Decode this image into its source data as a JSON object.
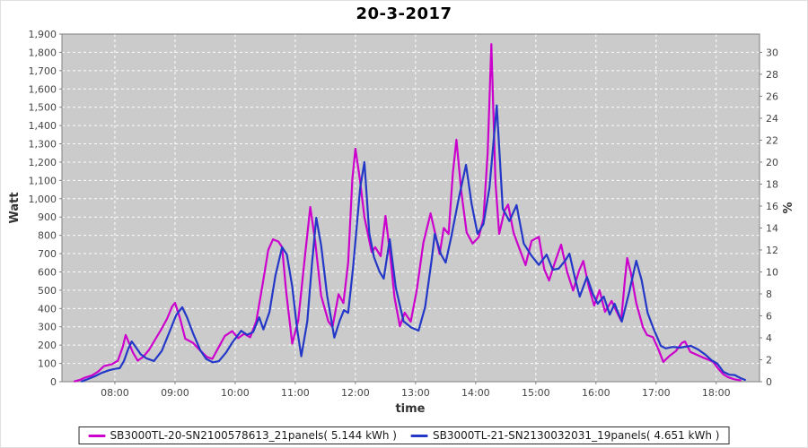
{
  "title": "20-3-2017",
  "chart_data": {
    "type": "line",
    "title": "20-3-2017",
    "xlabel": "time",
    "ylabel_left": "Watt",
    "ylabel_right": "%",
    "plot_bg": "#cbcbcb",
    "grid_color": "#ffffff",
    "grid_style": "dashed",
    "axis_color": "#808080",
    "legend_position": "bottom",
    "x_range_hours": [
      7.12,
      18.72
    ],
    "x_ticks": [
      {
        "h": 8,
        "label": "08:00"
      },
      {
        "h": 9,
        "label": "09:00"
      },
      {
        "h": 10,
        "label": "10:00"
      },
      {
        "h": 11,
        "label": "11:00"
      },
      {
        "h": 12,
        "label": "12:00"
      },
      {
        "h": 13,
        "label": "13:00"
      },
      {
        "h": 14,
        "label": "14:00"
      },
      {
        "h": 15,
        "label": "15:00"
      },
      {
        "h": 16,
        "label": "16:00"
      },
      {
        "h": 17,
        "label": "17:00"
      },
      {
        "h": 18,
        "label": "18:00"
      }
    ],
    "y_left_range": [
      0,
      1900
    ],
    "y_left_tick_step": 100,
    "y_right_ticks": [
      0,
      2,
      4,
      6,
      8,
      10,
      12,
      14,
      16,
      18,
      20,
      22,
      24,
      26,
      28,
      30
    ],
    "y_right_scale_watt_per_percent": 60,
    "series": [
      {
        "name": "SB3000TL-20-SN2100578613_21panels( 5.144 kWh )",
        "color": "#cc00cc",
        "points": [
          [
            7.33,
            2
          ],
          [
            7.42,
            10
          ],
          [
            7.5,
            22
          ],
          [
            7.62,
            35
          ],
          [
            7.72,
            55
          ],
          [
            7.82,
            85
          ],
          [
            7.95,
            95
          ],
          [
            8.05,
            115
          ],
          [
            8.13,
            190
          ],
          [
            8.18,
            255
          ],
          [
            8.23,
            215
          ],
          [
            8.3,
            160
          ],
          [
            8.38,
            115
          ],
          [
            8.47,
            135
          ],
          [
            8.57,
            175
          ],
          [
            8.67,
            230
          ],
          [
            8.77,
            285
          ],
          [
            8.87,
            345
          ],
          [
            8.95,
            410
          ],
          [
            9.0,
            431
          ],
          [
            9.08,
            350
          ],
          [
            9.17,
            235
          ],
          [
            9.3,
            212
          ],
          [
            9.42,
            170
          ],
          [
            9.53,
            135
          ],
          [
            9.62,
            125
          ],
          [
            9.72,
            185
          ],
          [
            9.83,
            250
          ],
          [
            9.95,
            276
          ],
          [
            10.05,
            238
          ],
          [
            10.15,
            262
          ],
          [
            10.25,
            243
          ],
          [
            10.35,
            330
          ],
          [
            10.45,
            520
          ],
          [
            10.55,
            720
          ],
          [
            10.63,
            778
          ],
          [
            10.72,
            766
          ],
          [
            10.78,
            735
          ],
          [
            10.85,
            490
          ],
          [
            10.95,
            208
          ],
          [
            11.05,
            335
          ],
          [
            11.15,
            650
          ],
          [
            11.25,
            955
          ],
          [
            11.33,
            770
          ],
          [
            11.43,
            470
          ],
          [
            11.55,
            330
          ],
          [
            11.62,
            298
          ],
          [
            11.72,
            478
          ],
          [
            11.8,
            430
          ],
          [
            11.88,
            650
          ],
          [
            11.95,
            1110
          ],
          [
            12.0,
            1273
          ],
          [
            12.07,
            1115
          ],
          [
            12.15,
            900
          ],
          [
            12.27,
            708
          ],
          [
            12.33,
            735
          ],
          [
            12.42,
            686
          ],
          [
            12.5,
            906
          ],
          [
            12.58,
            690
          ],
          [
            12.65,
            462
          ],
          [
            12.74,
            303
          ],
          [
            12.82,
            377
          ],
          [
            12.92,
            328
          ],
          [
            13.02,
            500
          ],
          [
            13.13,
            760
          ],
          [
            13.25,
            920
          ],
          [
            13.33,
            805
          ],
          [
            13.4,
            698
          ],
          [
            13.47,
            840
          ],
          [
            13.55,
            808
          ],
          [
            13.62,
            1140
          ],
          [
            13.68,
            1322
          ],
          [
            13.76,
            1040
          ],
          [
            13.85,
            815
          ],
          [
            13.95,
            755
          ],
          [
            14.05,
            790
          ],
          [
            14.13,
            890
          ],
          [
            14.2,
            1250
          ],
          [
            14.26,
            1845
          ],
          [
            14.33,
            1090
          ],
          [
            14.39,
            808
          ],
          [
            14.48,
            935
          ],
          [
            14.54,
            968
          ],
          [
            14.63,
            815
          ],
          [
            14.73,
            725
          ],
          [
            14.83,
            637
          ],
          [
            14.93,
            770
          ],
          [
            15.05,
            792
          ],
          [
            15.14,
            615
          ],
          [
            15.22,
            553
          ],
          [
            15.32,
            655
          ],
          [
            15.42,
            749
          ],
          [
            15.52,
            600
          ],
          [
            15.62,
            498
          ],
          [
            15.72,
            608
          ],
          [
            15.79,
            660
          ],
          [
            15.88,
            520
          ],
          [
            15.97,
            416
          ],
          [
            16.06,
            500
          ],
          [
            16.15,
            382
          ],
          [
            16.26,
            441
          ],
          [
            16.34,
            385
          ],
          [
            16.42,
            333
          ],
          [
            16.48,
            555
          ],
          [
            16.52,
            676
          ],
          [
            16.58,
            595
          ],
          [
            16.67,
            430
          ],
          [
            16.78,
            298
          ],
          [
            16.85,
            255
          ],
          [
            16.95,
            243
          ],
          [
            17.05,
            168
          ],
          [
            17.12,
            108
          ],
          [
            17.22,
            140
          ],
          [
            17.33,
            168
          ],
          [
            17.43,
            212
          ],
          [
            17.48,
            220
          ],
          [
            17.57,
            163
          ],
          [
            17.67,
            148
          ],
          [
            17.77,
            133
          ],
          [
            17.87,
            120
          ],
          [
            17.95,
            108
          ],
          [
            18.03,
            72
          ],
          [
            18.12,
            40
          ],
          [
            18.2,
            24
          ],
          [
            18.3,
            13
          ],
          [
            18.4,
            8
          ]
        ]
      },
      {
        "name": "SB3000TL-21-SN2130032031_19panels( 4.651 kWh )",
        "color": "#2438c8",
        "points": [
          [
            7.45,
            2
          ],
          [
            7.55,
            14
          ],
          [
            7.67,
            30
          ],
          [
            7.78,
            48
          ],
          [
            7.9,
            62
          ],
          [
            8.0,
            70
          ],
          [
            8.08,
            74
          ],
          [
            8.15,
            112
          ],
          [
            8.22,
            178
          ],
          [
            8.28,
            220
          ],
          [
            8.35,
            188
          ],
          [
            8.43,
            150
          ],
          [
            8.53,
            127
          ],
          [
            8.65,
            113
          ],
          [
            8.78,
            168
          ],
          [
            8.9,
            265
          ],
          [
            9.02,
            365
          ],
          [
            9.12,
            407
          ],
          [
            9.2,
            352
          ],
          [
            9.3,
            265
          ],
          [
            9.42,
            172
          ],
          [
            9.52,
            124
          ],
          [
            9.63,
            106
          ],
          [
            9.73,
            112
          ],
          [
            9.85,
            160
          ],
          [
            9.95,
            213
          ],
          [
            10.1,
            278
          ],
          [
            10.2,
            256
          ],
          [
            10.3,
            272
          ],
          [
            10.4,
            352
          ],
          [
            10.47,
            286
          ],
          [
            10.57,
            380
          ],
          [
            10.67,
            580
          ],
          [
            10.78,
            735
          ],
          [
            10.86,
            695
          ],
          [
            10.95,
            520
          ],
          [
            11.03,
            290
          ],
          [
            11.1,
            139
          ],
          [
            11.2,
            330
          ],
          [
            11.28,
            650
          ],
          [
            11.35,
            896
          ],
          [
            11.43,
            745
          ],
          [
            11.53,
            470
          ],
          [
            11.65,
            241
          ],
          [
            11.74,
            335
          ],
          [
            11.81,
            391
          ],
          [
            11.88,
            376
          ],
          [
            11.96,
            620
          ],
          [
            12.08,
            1060
          ],
          [
            12.15,
            1200
          ],
          [
            12.23,
            812
          ],
          [
            12.31,
            680
          ],
          [
            12.4,
            602
          ],
          [
            12.47,
            563
          ],
          [
            12.57,
            778
          ],
          [
            12.67,
            515
          ],
          [
            12.8,
            330
          ],
          [
            12.93,
            296
          ],
          [
            13.05,
            279
          ],
          [
            13.16,
            410
          ],
          [
            13.27,
            670
          ],
          [
            13.32,
            808
          ],
          [
            13.42,
            698
          ],
          [
            13.5,
            651
          ],
          [
            13.6,
            800
          ],
          [
            13.72,
            1005
          ],
          [
            13.84,
            1185
          ],
          [
            13.93,
            975
          ],
          [
            14.03,
            808
          ],
          [
            14.13,
            862
          ],
          [
            14.23,
            1060
          ],
          [
            14.35,
            1510
          ],
          [
            14.45,
            945
          ],
          [
            14.56,
            878
          ],
          [
            14.68,
            965
          ],
          [
            14.8,
            755
          ],
          [
            14.93,
            688
          ],
          [
            15.05,
            638
          ],
          [
            15.18,
            695
          ],
          [
            15.28,
            612
          ],
          [
            15.38,
            618
          ],
          [
            15.49,
            662
          ],
          [
            15.56,
            700
          ],
          [
            15.66,
            555
          ],
          [
            15.73,
            465
          ],
          [
            15.85,
            573
          ],
          [
            15.95,
            478
          ],
          [
            16.03,
            426
          ],
          [
            16.13,
            465
          ],
          [
            16.23,
            367
          ],
          [
            16.31,
            426
          ],
          [
            16.43,
            328
          ],
          [
            16.55,
            485
          ],
          [
            16.67,
            661
          ],
          [
            16.76,
            555
          ],
          [
            16.86,
            375
          ],
          [
            16.96,
            288
          ],
          [
            17.08,
            196
          ],
          [
            17.16,
            182
          ],
          [
            17.28,
            190
          ],
          [
            17.4,
            186
          ],
          [
            17.5,
            192
          ],
          [
            17.58,
            196
          ],
          [
            17.7,
            176
          ],
          [
            17.82,
            148
          ],
          [
            17.92,
            118
          ],
          [
            18.02,
            98
          ],
          [
            18.12,
            54
          ],
          [
            18.22,
            38
          ],
          [
            18.31,
            36
          ],
          [
            18.4,
            20
          ],
          [
            18.48,
            10
          ]
        ]
      }
    ]
  }
}
